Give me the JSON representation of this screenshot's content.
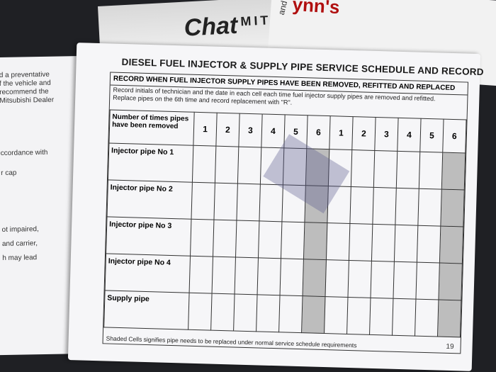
{
  "background": {
    "labels": [
      "Chat",
      "MITSU",
      "and Recomm",
      "ynn's"
    ]
  },
  "left_page": {
    "lines": [
      "d a preventative",
      "f the vehicle and",
      "recommend the",
      "Mitsubishi Dealer",
      "ccordance with",
      "r cap",
      "ot impaired,",
      "and carrier,",
      "h may lead"
    ]
  },
  "right_page": {
    "title": "DIESEL FUEL INJECTOR & SUPPLY PIPE SERVICE SCHEDULE AND RECORD",
    "record_heading": "RECORD WHEN FUEL INJECTOR SUPPLY PIPES HAVE BEEN REMOVED, REFITTED AND REPLACED",
    "instructions": [
      "Record initials of technician and the date in each cell each time fuel injector supply pipes are removed and refitted.",
      "Replace pipes on the 6th time and record replacement with \"R\"."
    ],
    "table": {
      "header_label": "Number of times pipes have been removed",
      "columns": [
        "1",
        "2",
        "3",
        "4",
        "5",
        "6",
        "1",
        "2",
        "3",
        "4",
        "5",
        "6"
      ],
      "rows": [
        "Injector pipe No 1",
        "Injector pipe No 2",
        "Injector pipe No 3",
        "Injector pipe No 4",
        "Supply pipe"
      ]
    },
    "footnote": "Shaded Cells signifies pipe needs to be replaced under normal service schedule requirements",
    "page_number": "19"
  }
}
